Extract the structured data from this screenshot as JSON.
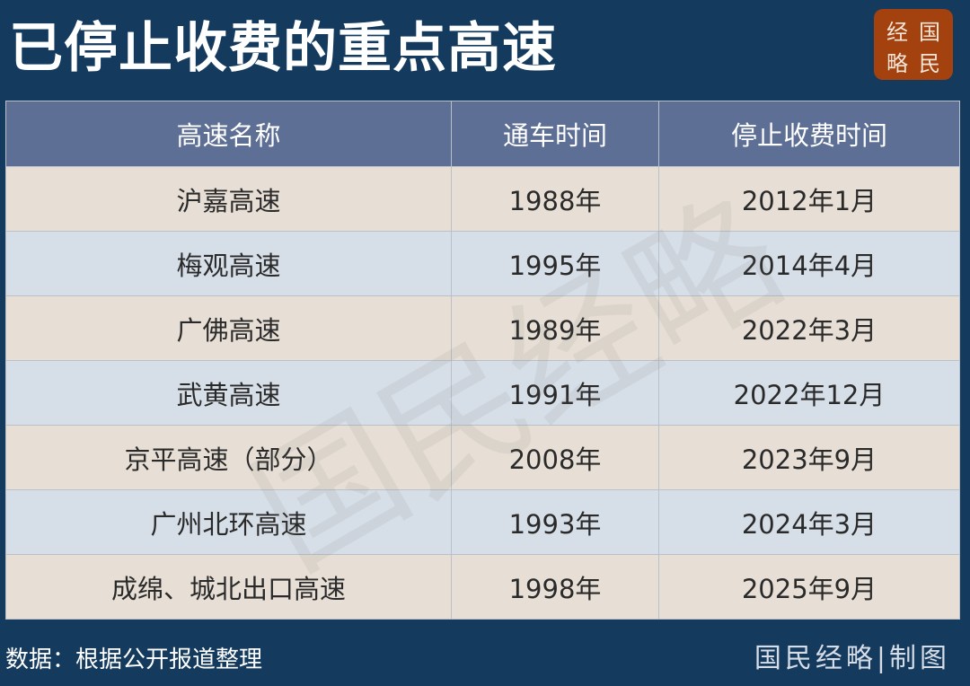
{
  "title": "已停止收费的重点高速",
  "logo": {
    "chars": [
      "经",
      "国",
      "略",
      "民"
    ],
    "color": "#a3410f"
  },
  "watermark": "国民经略",
  "chart_data": {
    "type": "table",
    "columns": [
      "高速名称",
      "通车时间",
      "停止收费时间"
    ],
    "rows": [
      [
        "沪嘉高速",
        "1988年",
        "2012年1月"
      ],
      [
        "梅观高速",
        "1995年",
        "2014年4月"
      ],
      [
        "广佛高速",
        "1989年",
        "2022年3月"
      ],
      [
        "武黄高速",
        "1991年",
        "2022年12月"
      ],
      [
        "京平高速（部分）",
        "2008年",
        "2023年9月"
      ],
      [
        "广州北环高速",
        "1993年",
        "2024年3月"
      ],
      [
        "成绵、城北出口高速",
        "1998年",
        "2025年9月"
      ]
    ]
  },
  "footer": {
    "source": "数据：根据公开报道整理",
    "credit": "国民经略|制图"
  },
  "colors": {
    "background": "#143a5e",
    "header": "#5d6f94",
    "row_odd": "#e7dfd5",
    "row_even": "#d6dee7"
  }
}
